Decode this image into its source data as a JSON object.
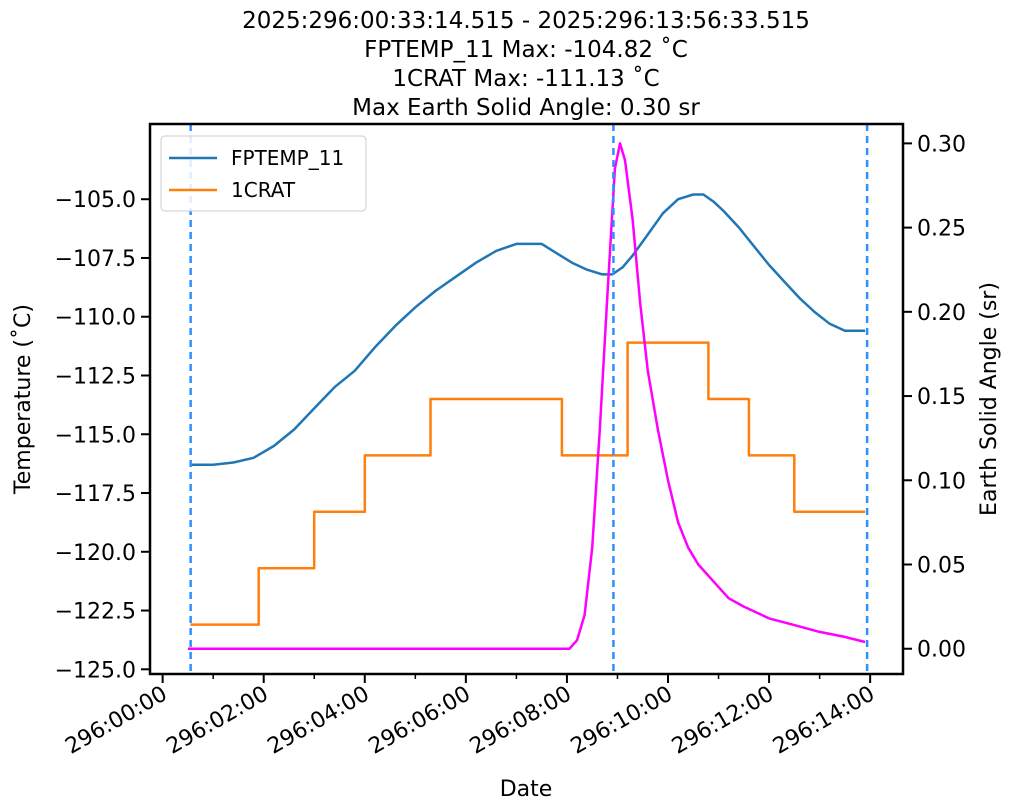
{
  "chart_data": {
    "type": "line",
    "title_lines": [
      "2025:296:00:33:14.515 - 2025:296:13:56:33.515",
      "FPTEMP_11 Max: -104.82 ˚C",
      "1CRAT Max: -111.13 ˚C",
      "Max Earth Solid Angle: 0.30 sr"
    ],
    "xlabel": "Date",
    "ylabel_left": "Temperature (˚C)",
    "ylabel_right": "Earth Solid Angle (sr)",
    "xlim_hours": [
      -0.25,
      14.65
    ],
    "ylim_left": [
      -125.2,
      -101.8
    ],
    "ylim_right": [
      -0.015,
      0.3115
    ],
    "x_ticks": [
      {
        "value": 0,
        "label": "296:00:00"
      },
      {
        "value": 2,
        "label": "296:02:00"
      },
      {
        "value": 4,
        "label": "296:04:00"
      },
      {
        "value": 6,
        "label": "296:06:00"
      },
      {
        "value": 8,
        "label": "296:08:00"
      },
      {
        "value": 10,
        "label": "296:10:00"
      },
      {
        "value": 12,
        "label": "296:12:00"
      },
      {
        "value": 14,
        "label": "296:14:00"
      }
    ],
    "y_ticks_left": [
      {
        "value": -105.0,
        "label": "−105.0"
      },
      {
        "value": -107.5,
        "label": "−107.5"
      },
      {
        "value": -110.0,
        "label": "−110.0"
      },
      {
        "value": -112.5,
        "label": "−112.5"
      },
      {
        "value": -115.0,
        "label": "−115.0"
      },
      {
        "value": -117.5,
        "label": "−117.5"
      },
      {
        "value": -120.0,
        "label": "−120.0"
      },
      {
        "value": -122.5,
        "label": "−122.5"
      },
      {
        "value": -125.0,
        "label": "−125.0"
      }
    ],
    "y_ticks_right": [
      {
        "value": 0.0,
        "label": "0.00"
      },
      {
        "value": 0.05,
        "label": "0.05"
      },
      {
        "value": 0.1,
        "label": "0.10"
      },
      {
        "value": 0.15,
        "label": "0.15"
      },
      {
        "value": 0.2,
        "label": "0.20"
      },
      {
        "value": 0.25,
        "label": "0.25"
      },
      {
        "value": 0.3,
        "label": "0.30"
      }
    ],
    "vlines_hours": [
      0.554,
      8.92,
      13.94
    ],
    "legend_position": "upper-left",
    "series": [
      {
        "name": "FPTEMP_11",
        "axis": "left",
        "color": "#1f77b4",
        "x": [
          0.55,
          1.0,
          1.4,
          1.8,
          2.2,
          2.6,
          3.0,
          3.4,
          3.8,
          4.2,
          4.6,
          5.0,
          5.4,
          5.8,
          6.2,
          6.6,
          7.0,
          7.3,
          7.5,
          7.8,
          8.1,
          8.4,
          8.7,
          8.9,
          9.1,
          9.3,
          9.6,
          9.9,
          10.2,
          10.5,
          10.7,
          10.9,
          11.1,
          11.4,
          11.7,
          12.0,
          12.3,
          12.6,
          12.9,
          13.2,
          13.5,
          13.9
        ],
        "y": [
          -116.3,
          -116.3,
          -116.2,
          -116.0,
          -115.5,
          -114.8,
          -113.9,
          -113.0,
          -112.3,
          -111.3,
          -110.4,
          -109.6,
          -108.9,
          -108.3,
          -107.7,
          -107.2,
          -106.9,
          -106.9,
          -106.9,
          -107.3,
          -107.7,
          -108.0,
          -108.2,
          -108.2,
          -107.9,
          -107.4,
          -106.5,
          -105.6,
          -105.0,
          -104.8,
          -104.8,
          -105.1,
          -105.5,
          -106.2,
          -107.0,
          -107.8,
          -108.5,
          -109.2,
          -109.8,
          -110.3,
          -110.6,
          -110.6
        ]
      },
      {
        "name": "1CRAT",
        "axis": "left",
        "color": "#ff7f0e",
        "x": [
          0.55,
          1.9,
          1.9,
          3.0,
          3.0,
          4.0,
          4.0,
          5.3,
          5.3,
          7.9,
          7.9,
          9.2,
          9.2,
          10.8,
          10.8,
          11.6,
          11.6,
          12.5,
          12.5,
          13.9
        ],
        "y": [
          -123.1,
          -123.1,
          -120.7,
          -120.7,
          -118.3,
          -118.3,
          -115.9,
          -115.9,
          -113.5,
          -113.5,
          -115.9,
          -115.9,
          -111.1,
          -111.1,
          -113.5,
          -113.5,
          -115.9,
          -115.9,
          -118.3,
          -118.3
        ]
      },
      {
        "name": "Earth Solid Angle",
        "axis": "right",
        "color": "#ff00ff",
        "x": [
          0.5,
          8.05,
          8.2,
          8.35,
          8.5,
          8.65,
          8.8,
          8.95,
          9.05,
          9.15,
          9.3,
          9.45,
          9.6,
          9.8,
          10.0,
          10.2,
          10.4,
          10.6,
          10.9,
          11.2,
          11.5,
          12.0,
          12.5,
          13.0,
          13.5,
          13.9
        ],
        "y": [
          0.0,
          0.0,
          0.005,
          0.02,
          0.06,
          0.13,
          0.21,
          0.285,
          0.3,
          0.29,
          0.255,
          0.205,
          0.165,
          0.13,
          0.1,
          0.075,
          0.06,
          0.05,
          0.04,
          0.03,
          0.025,
          0.018,
          0.014,
          0.01,
          0.007,
          0.004
        ]
      }
    ]
  }
}
